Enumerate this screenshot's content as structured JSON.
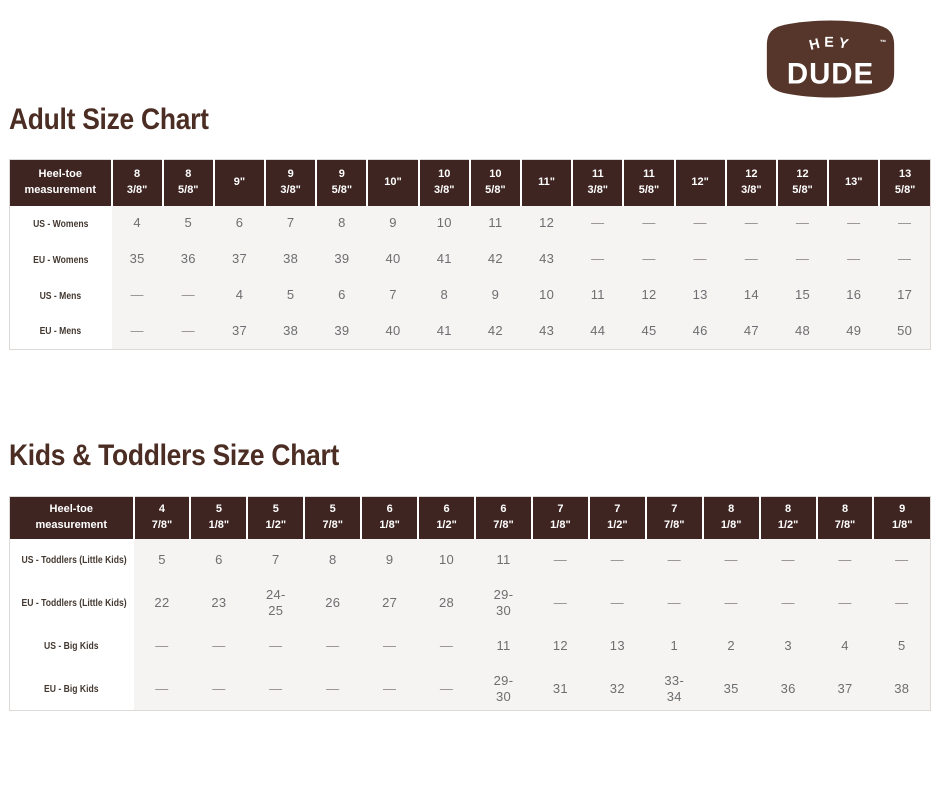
{
  "logo": {
    "hey": "HEY",
    "dude": "DUDE",
    "tm": "™"
  },
  "adult": {
    "title": "Adult Size Chart",
    "header_label": "Heel-toe\nmeasurement",
    "columns": [
      "8\n3/8\"",
      "8\n5/8\"",
      "9\"",
      "9\n3/8\"",
      "9\n5/8\"",
      "10\"",
      "10\n3/8\"",
      "10\n5/8\"",
      "11\"",
      "11\n3/8\"",
      "11\n5/8\"",
      "12\"",
      "12\n3/8\"",
      "12\n5/8\"",
      "13\"",
      "13\n5/8\""
    ],
    "rows": [
      {
        "label": "US - Womens",
        "values": [
          "4",
          "5",
          "6",
          "7",
          "8",
          "9",
          "10",
          "11",
          "12",
          "—",
          "—",
          "—",
          "—",
          "—",
          "—",
          "—"
        ]
      },
      {
        "label": "EU - Womens",
        "values": [
          "35",
          "36",
          "37",
          "38",
          "39",
          "40",
          "41",
          "42",
          "43",
          "—",
          "—",
          "—",
          "—",
          "—",
          "—",
          "—"
        ]
      },
      {
        "label": "US - Mens",
        "values": [
          "—",
          "—",
          "4",
          "5",
          "6",
          "7",
          "8",
          "9",
          "10",
          "11",
          "12",
          "13",
          "14",
          "15",
          "16",
          "17"
        ]
      },
      {
        "label": "EU - Mens",
        "values": [
          "—",
          "—",
          "37",
          "38",
          "39",
          "40",
          "41",
          "42",
          "43",
          "44",
          "45",
          "46",
          "47",
          "48",
          "49",
          "50"
        ]
      }
    ]
  },
  "kids": {
    "title": "Kids & Toddlers Size Chart",
    "header_label": "Heel-toe\nmeasurement",
    "columns": [
      "4\n7/8\"",
      "5\n1/8\"",
      "5\n1/2\"",
      "5\n7/8\"",
      "6\n1/8\"",
      "6\n1/2\"",
      "6\n7/8\"",
      "7\n1/8\"",
      "7\n1/2\"",
      "7\n7/8\"",
      "8\n1/8\"",
      "8\n1/2\"",
      "8\n7/8\"",
      "9\n1/8\""
    ],
    "rows": [
      {
        "label": "US - Toddlers (Little Kids)",
        "values": [
          "5",
          "6",
          "7",
          "8",
          "9",
          "10",
          "11",
          "—",
          "—",
          "—",
          "—",
          "—",
          "—",
          "—"
        ]
      },
      {
        "label": "EU - Toddlers (Little Kids)",
        "values": [
          "22",
          "23",
          "24-\n25",
          "26",
          "27",
          "28",
          "29-\n30",
          "—",
          "—",
          "—",
          "—",
          "—",
          "—",
          "—"
        ]
      },
      {
        "label": "US - Big Kids",
        "values": [
          "—",
          "—",
          "—",
          "—",
          "—",
          "—",
          "11",
          "12",
          "13",
          "1",
          "2",
          "3",
          "4",
          "5"
        ]
      },
      {
        "label": "EU - Big Kids",
        "values": [
          "—",
          "—",
          "—",
          "—",
          "—",
          "—",
          "29-\n30",
          "31",
          "32",
          "33-\n34",
          "35",
          "36",
          "37",
          "38"
        ]
      }
    ]
  },
  "colors": {
    "header_bg": "#3e2521",
    "logo_brown": "#56362a",
    "title_text": "#4b2d24",
    "label_text": "#443931",
    "value_text": "#6d6e71",
    "dash_text": "#8e8b89",
    "body_bg": "#f5f4f2",
    "table_border": "#dcd9d6"
  }
}
